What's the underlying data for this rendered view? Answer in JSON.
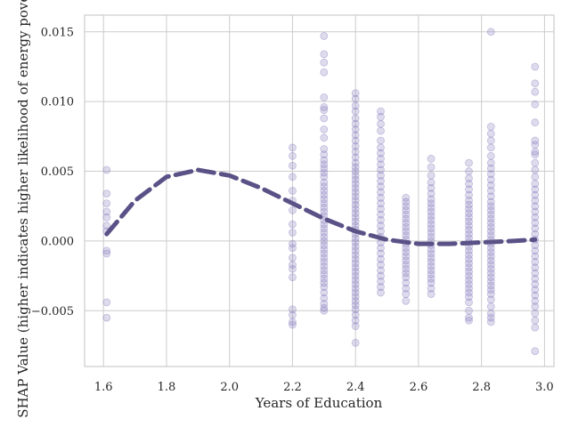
{
  "chart_data": {
    "type": "scatter",
    "title": "",
    "xlabel": "Years of Education",
    "ylabel": "SHAP Value (higher indicates higher likelihood of energy poverty)",
    "xlim": [
      1.54,
      3.03
    ],
    "ylim": [
      -0.009,
      0.0162
    ],
    "grid": true,
    "legend": "none",
    "xticks": [
      {
        "value": 1.6,
        "label": "1.6"
      },
      {
        "value": 1.8,
        "label": "1.8"
      },
      {
        "value": 2.0,
        "label": "2.0"
      },
      {
        "value": 2.2,
        "label": "2.2"
      },
      {
        "value": 2.4,
        "label": "2.4"
      },
      {
        "value": 2.6,
        "label": "2.6"
      },
      {
        "value": 2.8,
        "label": "2.8"
      },
      {
        "value": 3.0,
        "label": "3.0"
      }
    ],
    "yticks": [
      {
        "value": -0.005,
        "label": "−0.005"
      },
      {
        "value": 0.0,
        "label": "0.000"
      },
      {
        "value": 0.005,
        "label": "0.005"
      },
      {
        "value": 0.01,
        "label": "0.010"
      },
      {
        "value": 0.015,
        "label": "0.015"
      }
    ],
    "scatter_color": "#8a7fbf",
    "trend_color": "#5a5287",
    "scatter_series": [
      {
        "x": 1.61,
        "y": [
          0.0051,
          0.0034,
          0.0027,
          0.0021,
          0.0017,
          0.0011,
          0.0007,
          -0.0007,
          -0.0009,
          -0.0044,
          -0.0055
        ]
      },
      {
        "x": 2.2,
        "y": [
          0.0067,
          0.0061,
          0.0054,
          0.0046,
          0.0036,
          0.0029,
          0.0022,
          0.0012,
          0.0006,
          -0.0002,
          -0.0005,
          -0.0012,
          -0.0017,
          -0.002,
          -0.0026,
          -0.0049,
          -0.0053,
          -0.0058,
          -0.006
        ]
      },
      {
        "x": 2.3,
        "y": [
          0.0147,
          0.0134,
          0.0128,
          0.0121,
          0.0103,
          0.0096,
          0.0094,
          0.0088,
          0.008,
          0.0074,
          0.0066,
          0.0062,
          0.0058,
          0.0055,
          0.0052,
          0.0049,
          0.0046,
          0.0042,
          0.0039,
          0.0036,
          0.0033,
          0.003,
          0.0027,
          0.0024,
          0.0021,
          0.0018,
          0.0015,
          0.0012,
          0.0009,
          0.0006,
          0.0003,
          0.0,
          -0.0003,
          -0.0006,
          -0.0009,
          -0.0012,
          -0.0015,
          -0.0018,
          -0.0021,
          -0.0024,
          -0.0027,
          -0.003,
          -0.0033,
          -0.0037,
          -0.0041,
          -0.0045,
          -0.0048,
          -0.005
        ]
      },
      {
        "x": 2.4,
        "y": [
          0.0106,
          0.0102,
          0.0097,
          0.0093,
          0.0088,
          0.0084,
          0.008,
          0.0076,
          0.0072,
          0.0068,
          0.0064,
          0.006,
          0.0056,
          0.0053,
          0.005,
          0.0047,
          0.0044,
          0.0041,
          0.0038,
          0.0035,
          0.0032,
          0.0029,
          0.0026,
          0.0023,
          0.002,
          0.0017,
          0.0014,
          0.0011,
          0.0008,
          0.0005,
          0.0002,
          -0.0001,
          -0.0004,
          -0.0007,
          -0.001,
          -0.0013,
          -0.0016,
          -0.0019,
          -0.0022,
          -0.0025,
          -0.0028,
          -0.0031,
          -0.0034,
          -0.0037,
          -0.004,
          -0.0043,
          -0.0046,
          -0.0049,
          -0.0053,
          -0.0057,
          -0.0061,
          -0.0073
        ]
      },
      {
        "x": 2.48,
        "y": [
          0.0093,
          0.0089,
          0.0084,
          0.0079,
          0.0072,
          0.0067,
          0.0063,
          0.0059,
          0.0055,
          0.0051,
          0.0047,
          0.0043,
          0.0039,
          0.0035,
          0.0031,
          0.0027,
          0.0023,
          0.0019,
          0.0015,
          0.0011,
          0.0007,
          0.0003,
          -0.0001,
          -0.0005,
          -0.0009,
          -0.0013,
          -0.0017,
          -0.0021,
          -0.0025,
          -0.0029,
          -0.0033,
          -0.0037
        ]
      },
      {
        "x": 2.56,
        "y": [
          0.0031,
          0.0028,
          0.0025,
          0.0022,
          0.0019,
          0.0016,
          0.0013,
          0.001,
          0.0007,
          0.0004,
          0.0001,
          -0.0002,
          -0.0005,
          -0.0008,
          -0.0011,
          -0.0014,
          -0.0017,
          -0.002,
          -0.0023,
          -0.0026,
          -0.003,
          -0.0034,
          -0.0038,
          -0.0043
        ]
      },
      {
        "x": 2.64,
        "y": [
          0.0059,
          0.0053,
          0.0047,
          0.0042,
          0.0038,
          0.0034,
          0.003,
          0.0027,
          0.0024,
          0.0021,
          0.0018,
          0.0015,
          0.0012,
          0.0009,
          0.0006,
          0.0003,
          0.0,
          -0.0003,
          -0.0006,
          -0.0009,
          -0.0012,
          -0.0015,
          -0.0018,
          -0.0021,
          -0.0024,
          -0.0027,
          -0.003,
          -0.0034,
          -0.0038
        ]
      },
      {
        "x": 2.76,
        "y": [
          0.0056,
          0.005,
          0.0045,
          0.0041,
          0.0037,
          0.0033,
          0.0029,
          0.0026,
          0.0023,
          0.002,
          0.0017,
          0.0014,
          0.0011,
          0.0008,
          0.0005,
          0.0002,
          -0.0001,
          -0.0004,
          -0.0007,
          -0.001,
          -0.0013,
          -0.0016,
          -0.0019,
          -0.0022,
          -0.0025,
          -0.0028,
          -0.0031,
          -0.0034,
          -0.0037,
          -0.004,
          -0.0044,
          -0.005,
          -0.0055,
          -0.0057
        ]
      },
      {
        "x": 2.83,
        "y": [
          0.015,
          0.0082,
          0.0077,
          0.0072,
          0.0067,
          0.0061,
          0.0056,
          0.0052,
          0.0048,
          0.0044,
          0.004,
          0.0036,
          0.0032,
          0.0028,
          0.0025,
          0.0022,
          0.0019,
          0.0016,
          0.0013,
          0.001,
          0.0007,
          0.0004,
          0.0001,
          -0.0002,
          -0.0005,
          -0.0008,
          -0.0011,
          -0.0014,
          -0.0017,
          -0.002,
          -0.0023,
          -0.0026,
          -0.0029,
          -0.0032,
          -0.0035,
          -0.0038,
          -0.0042,
          -0.0047,
          -0.0052,
          -0.0055,
          -0.0058
        ]
      },
      {
        "x": 2.97,
        "y": [
          0.0125,
          0.0113,
          0.0107,
          0.0098,
          0.0085,
          0.0072,
          0.0069,
          0.0064,
          0.0062,
          0.0056,
          0.0051,
          0.0046,
          0.0041,
          0.0037,
          0.0033,
          0.0029,
          0.0025,
          0.0021,
          0.0017,
          0.0013,
          0.0009,
          0.0005,
          0.0001,
          -0.0003,
          -0.0007,
          -0.0011,
          -0.0015,
          -0.0019,
          -0.0023,
          -0.0027,
          -0.0031,
          -0.0035,
          -0.0039,
          -0.0043,
          -0.0047,
          -0.0052,
          -0.0057,
          -0.0062,
          -0.0079
        ]
      }
    ],
    "trend_line": {
      "style": "dashed",
      "x": [
        1.61,
        1.7,
        1.8,
        1.9,
        2.0,
        2.1,
        2.2,
        2.3,
        2.4,
        2.5,
        2.6,
        2.7,
        2.8,
        2.9,
        2.97
      ],
      "y": [
        0.0005,
        0.0029,
        0.0046,
        0.0051,
        0.0047,
        0.0038,
        0.0027,
        0.0016,
        0.0007,
        0.0001,
        -0.0002,
        -0.0002,
        -0.0001,
        0.0,
        0.0001
      ]
    }
  }
}
